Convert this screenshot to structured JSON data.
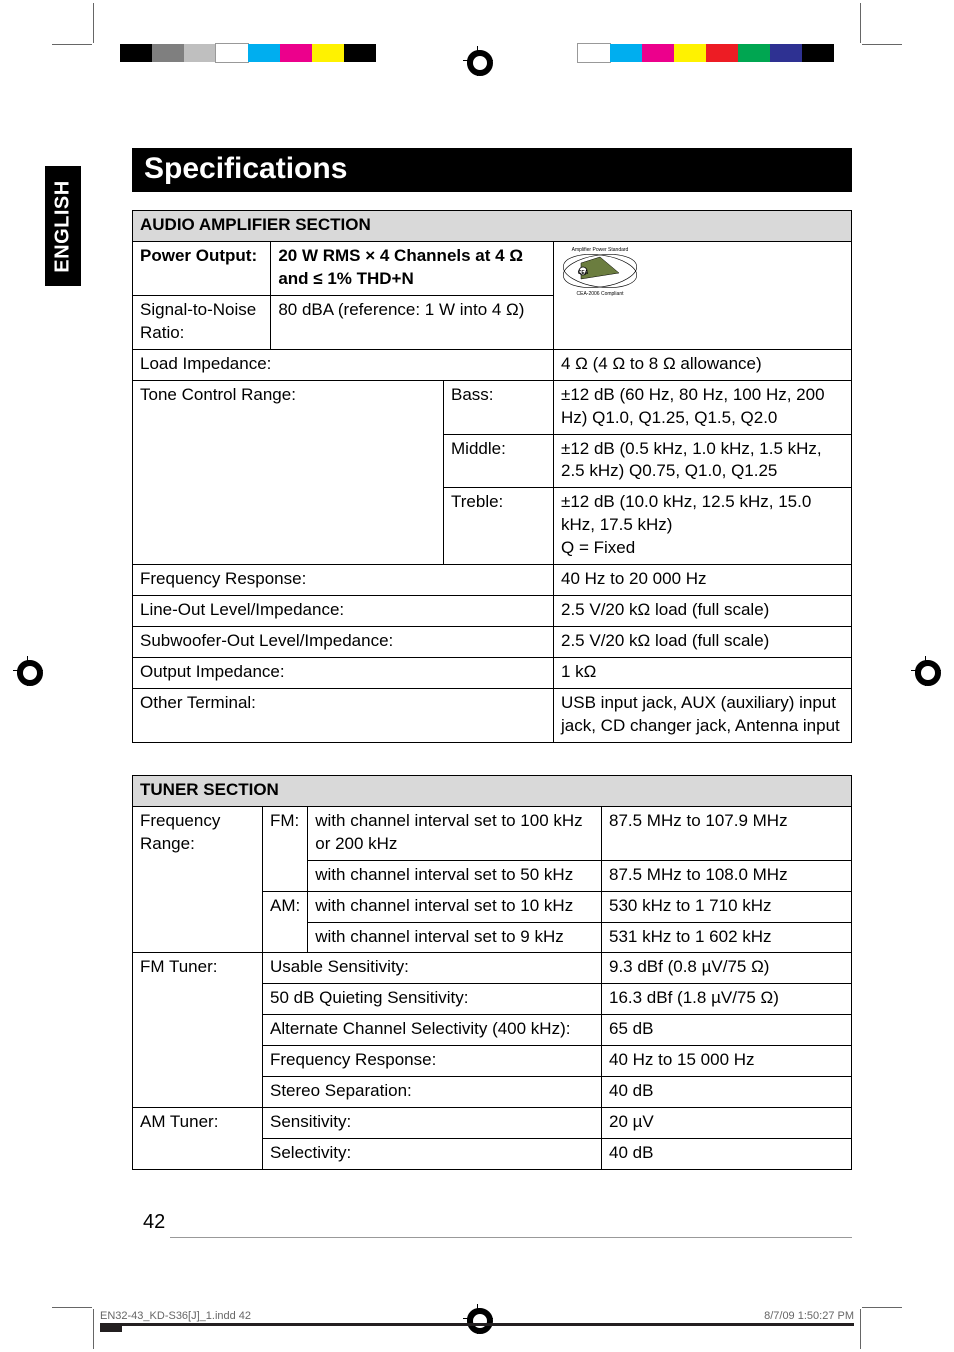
{
  "side_tab": "ENGLISH",
  "title": "Specifications",
  "page_number": "42",
  "slug_left": "EN32-43_KD-S36[J]_1.indd   42",
  "slug_right": "8/7/09   1:50:27 PM",
  "amp": {
    "header": "AUDIO AMPLIFIER SECTION",
    "power_label": "Power Output:",
    "power_value": "20 W RMS × 4 Channels at 4 Ω and ≤ 1% THD+N",
    "snr_label": "Signal-to-Noise Ratio:",
    "snr_value": "80 dBA (reference: 1 W into 4 Ω)",
    "load_label": "Load Impedance:",
    "load_value": "4 Ω (4 Ω to 8 Ω allowance)",
    "tone_label": "Tone Control Range:",
    "bass_label": "Bass:",
    "bass_value": "±12 dB (60 Hz, 80 Hz, 100 Hz, 200 Hz) Q1.0, Q1.25, Q1.5, Q2.0",
    "mid_label": "Middle:",
    "mid_value": "±12 dB (0.5 kHz, 1.0 kHz, 1.5 kHz, 2.5 kHz) Q0.75, Q1.0, Q1.25",
    "treb_label": "Treble:",
    "treb_value": "±12 dB (10.0 kHz, 12.5 kHz, 15.0 kHz, 17.5 kHz)\nQ = Fixed",
    "freq_label": "Frequency Response:",
    "freq_value": "40 Hz to 20 000 Hz",
    "line_label": "Line-Out Level/Impedance:",
    "line_value": "2.5 V/20 kΩ load (full scale)",
    "sub_label": "Subwoofer-Out Level/Impedance:",
    "sub_value": "2.5 V/20 kΩ load (full scale)",
    "out_label": "Output Impedance:",
    "out_value": "1 kΩ",
    "other_label": "Other Terminal:",
    "other_value": "USB input jack, AUX (auxiliary) input jack, CD changer jack, Antenna input"
  },
  "tuner": {
    "header": "TUNER SECTION",
    "fr_label": "Frequency Range:",
    "fm": "FM:",
    "am": "AM:",
    "ci100": "with channel interval set to 100 kHz or 200 kHz",
    "ci100v": "87.5 MHz to 107.9 MHz",
    "ci50": "with channel interval set to 50 kHz",
    "ci50v": "87.5 MHz to 108.0 MHz",
    "ci10": "with channel interval set to 10 kHz",
    "ci10v": "530 kHz to 1 710 kHz",
    "ci9": "with channel interval set to 9 kHz",
    "ci9v": "531 kHz to 1 602 kHz",
    "fmt_label": "FM Tuner:",
    "us": "Usable Sensitivity:",
    "usv": "9.3 dBf (0.8 µV/75 Ω)",
    "qs": "50 dB Quieting Sensitivity:",
    "qsv": "16.3 dBf (1.8 µV/75 Ω)",
    "acs": "Alternate Channel Selectivity (400 kHz):",
    "acsv": "65 dB",
    "fr": "Frequency Response:",
    "frv": "40 Hz to 15 000 Hz",
    "ss": "Stereo Separation:",
    "ssv": "40 dB",
    "amt_label": "AM Tuner:",
    "sens": "Sensitivity:",
    "sensv": "20 µV",
    "sel": "Selectivity:",
    "selv": "40 dB"
  },
  "colors": {
    "bar_left": [
      "#000000",
      "#7f7f7f",
      "#bfbfbf",
      "#ffffff",
      "#00aeef",
      "#ec008c",
      "#fff200",
      "#000000"
    ],
    "bar_right": [
      "#ffffff",
      "#00aeef",
      "#ec008c",
      "#fff200",
      "#ed1c24",
      "#00a651",
      "#2e3192",
      "#000000"
    ]
  }
}
